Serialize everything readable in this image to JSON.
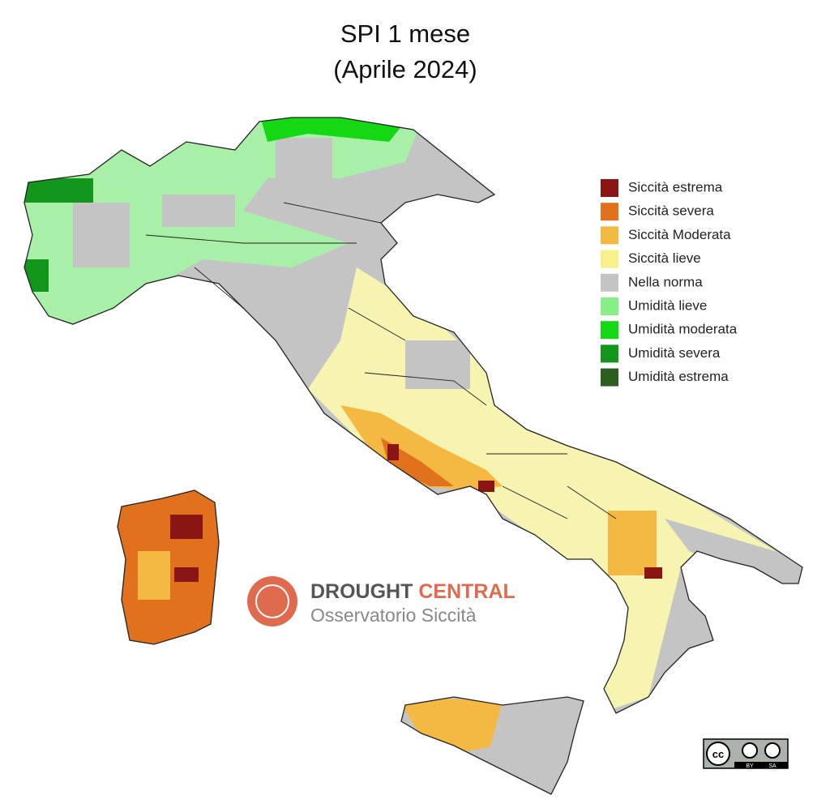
{
  "title": [
    "SPI 1 mese",
    "(Aprile 2024)"
  ],
  "legend": [
    {
      "label": "Siccità estrema",
      "color": "#8b1414"
    },
    {
      "label": "Siccità severa",
      "color": "#e2711d"
    },
    {
      "label": "Siccità Moderata",
      "color": "#f4b942"
    },
    {
      "label": "Siccità lieve",
      "color": "#f7f08a"
    },
    {
      "label": "Nella norma",
      "color": "#c4c4c4"
    },
    {
      "label": "Umidità lieve",
      "color": "#86f086"
    },
    {
      "label": "Umidità moderata",
      "color": "#14d814"
    },
    {
      "label": "Umidità severa",
      "color": "#12961b"
    },
    {
      "label": "Umidità estrema",
      "color": "#2d5e1e"
    }
  ],
  "logo": {
    "word_1": "DROUGHT",
    "word_2": "CENTRAL",
    "subtitle": "Osservatorio Siccità"
  },
  "license": {
    "icon": "cc",
    "by": "BY",
    "sa": "SA"
  }
}
